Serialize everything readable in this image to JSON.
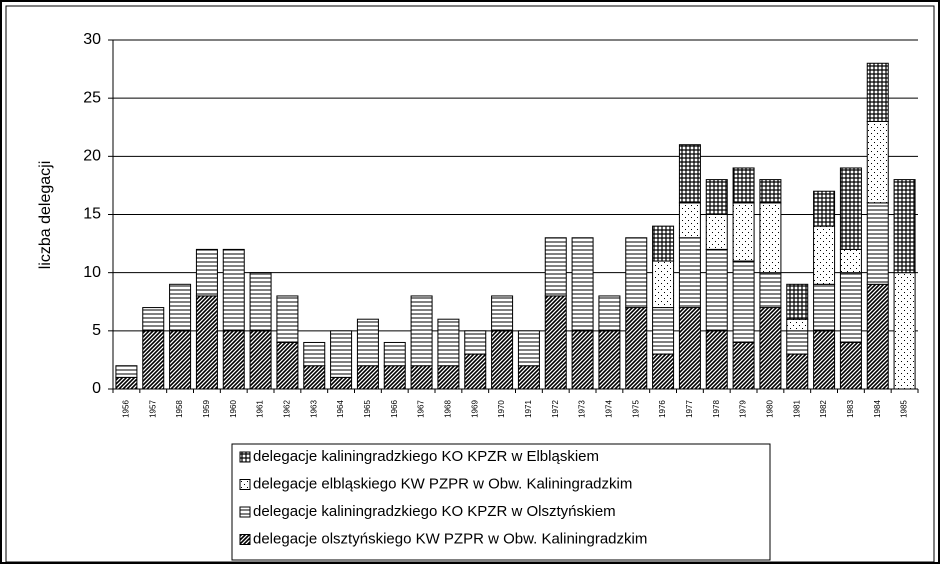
{
  "chart_data": {
    "type": "stacked-bar",
    "ylabel": "liczba delegacji",
    "categories": [
      "1956",
      "1957",
      "1958",
      "1959",
      "1960",
      "1961",
      "1962",
      "1963",
      "1964",
      "1965",
      "1966",
      "1967",
      "1968",
      "1969",
      "1970",
      "1971",
      "1972",
      "1973",
      "1974",
      "1975",
      "1976",
      "1977",
      "1978",
      "1979",
      "1980",
      "1981",
      "1982",
      "1983",
      "1984",
      "1985"
    ],
    "series": [
      {
        "name": "delegacje olsztyńskiego KW PZPR w Obw. Kaliningradzkim",
        "color": "#000000",
        "pattern": "diagonal",
        "values": [
          1,
          5,
          5,
          8,
          5,
          5,
          4,
          2,
          1,
          2,
          2,
          2,
          2,
          3,
          5,
          2,
          8,
          5,
          5,
          7,
          3,
          7,
          5,
          4,
          7,
          3,
          5,
          4,
          9,
          0
        ]
      },
      {
        "name": "delegacje kaliningradzkiego KO KPZR w Olsztyńskiem",
        "color": "#000000",
        "pattern": "horizontal",
        "values": [
          1,
          2,
          4,
          4,
          7,
          5,
          4,
          2,
          4,
          4,
          2,
          6,
          4,
          2,
          3,
          3,
          5,
          8,
          3,
          6,
          4,
          6,
          7,
          7,
          3,
          2,
          4,
          6,
          7,
          0
        ]
      },
      {
        "name": "delegacje elbląskiego KW PZPR w Obw. Kaliningradzkim",
        "color": "#000000",
        "pattern": "dots",
        "values": [
          0,
          0,
          0,
          0,
          0,
          0,
          0,
          0,
          0,
          0,
          0,
          0,
          0,
          0,
          0,
          0,
          0,
          0,
          0,
          0,
          4,
          3,
          3,
          5,
          6,
          1,
          5,
          2,
          7,
          10
        ]
      },
      {
        "name": "delegacje kaliningradzkiego KO KPZR w Elbląskiem",
        "color": "#000000",
        "pattern": "grid",
        "values": [
          0,
          0,
          0,
          0,
          0,
          0,
          0,
          0,
          0,
          0,
          0,
          0,
          0,
          0,
          0,
          0,
          0,
          0,
          0,
          0,
          3,
          5,
          3,
          3,
          2,
          3,
          3,
          7,
          5,
          8
        ]
      }
    ],
    "ylim": [
      0,
      30
    ],
    "yticks": [
      0,
      5,
      10,
      15,
      20,
      25,
      30
    ],
    "grid": true
  }
}
